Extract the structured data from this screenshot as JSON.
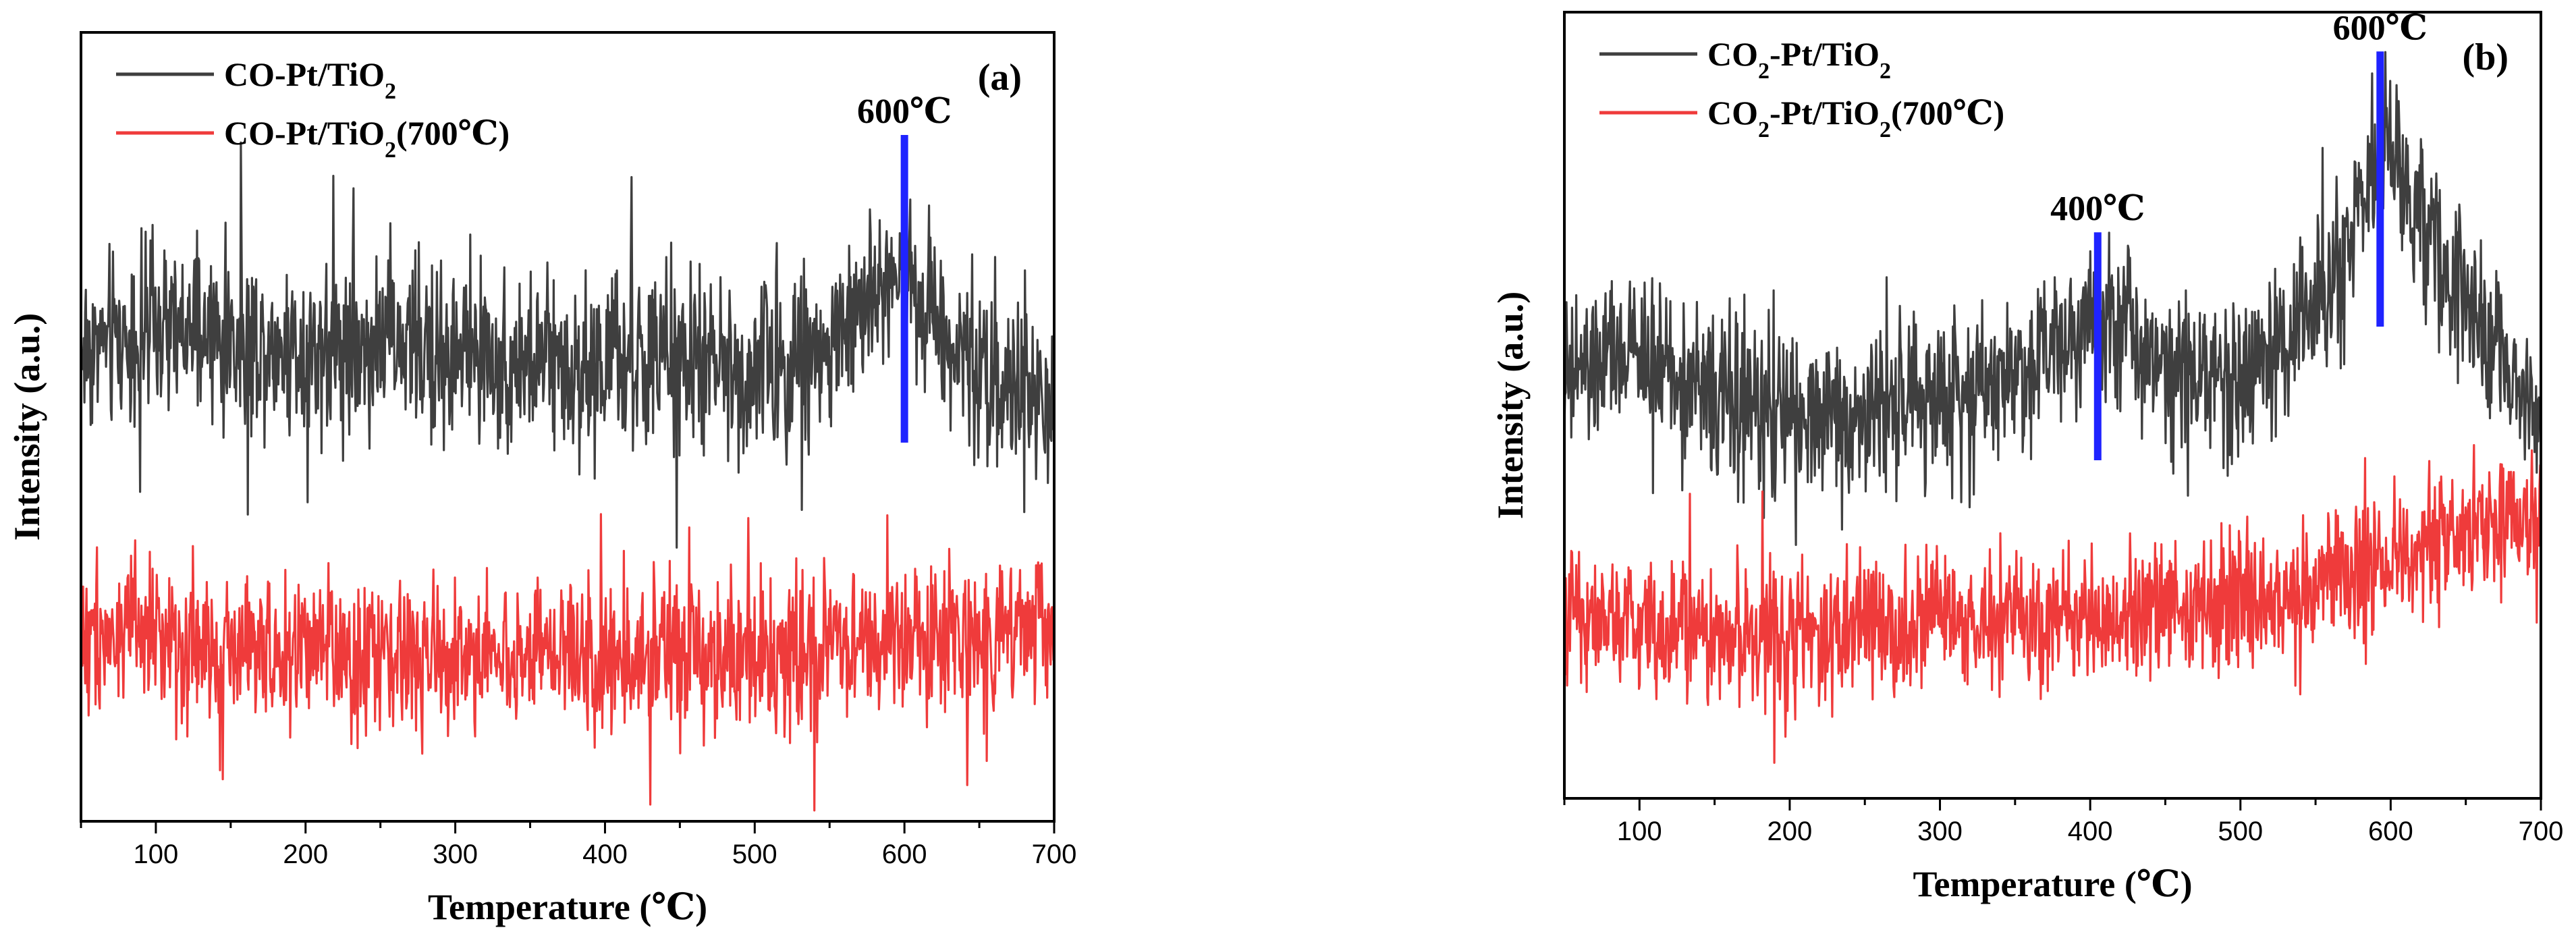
{
  "colors": {
    "gray_series": "#3f3f3f",
    "red_series": "#ef3b3b",
    "marker": "#1f23ff",
    "axis": "#000000"
  },
  "chart_data": [
    {
      "type": "line",
      "panel_label": "(a)",
      "xlabel": "Temperature (℃)",
      "ylabel": "Intensity (a.u.)",
      "xlim": [
        50,
        700
      ],
      "ylim": [
        0,
        100
      ],
      "xticks": [
        100,
        200,
        300,
        400,
        500,
        600,
        700
      ],
      "legend_position": "top-left",
      "series": [
        {
          "name": "CO-Pt/TiO2",
          "legend": {
            "base": "CO-Pt/TiO",
            "sub": "2",
            "suffix": ""
          },
          "color": "gray",
          "baseline": 59,
          "noise": 6.5,
          "peaks": [
            {
              "center": 600,
              "height": 14,
              "width": 22
            }
          ],
          "x": [
            50,
            100,
            150,
            200,
            250,
            300,
            350,
            400,
            450,
            500,
            550,
            580,
            600,
            620,
            650,
            700
          ],
          "y": [
            60,
            62,
            61,
            60,
            61,
            59,
            58,
            58,
            58,
            57,
            60,
            67,
            71,
            64,
            57,
            52
          ]
        },
        {
          "name": "CO-Pt/TiO2(700℃)",
          "legend": {
            "base": "CO-Pt/TiO",
            "sub": "2",
            "suffix": "(700℃)"
          },
          "color": "red",
          "baseline": 21,
          "noise": 5.5,
          "peaks": [],
          "x": [
            50,
            100,
            150,
            200,
            250,
            300,
            350,
            400,
            450,
            500,
            550,
            600,
            650,
            700
          ],
          "y": [
            24,
            23,
            22,
            21,
            21,
            21,
            21,
            21,
            21,
            21,
            22,
            22,
            23,
            25
          ]
        }
      ],
      "annotations": [
        {
          "text": "600℃",
          "x": 600,
          "line_y": [
            48,
            87
          ]
        }
      ]
    },
    {
      "type": "line",
      "panel_label": "(b)",
      "xlabel": "Temperature (℃)",
      "ylabel": "Intensity (a.u.)",
      "xlim": [
        50,
        700
      ],
      "ylim": [
        0,
        100
      ],
      "xticks": [
        100,
        200,
        300,
        400,
        500,
        600,
        700
      ],
      "legend_position": "top-left",
      "series": [
        {
          "name": "CO2-Pt/TiO2",
          "legend": {
            "base": "CO",
            "sub": "2",
            "mid": "-Pt/TiO",
            "sub2": "2",
            "suffix": ""
          },
          "color": "gray",
          "baseline": 50,
          "noise": 6.0,
          "peaks": [
            {
              "center": 400,
              "height": 13,
              "width": 55
            },
            {
              "center": 595,
              "height": 33,
              "width": 45
            }
          ],
          "x": [
            50,
            100,
            150,
            200,
            250,
            300,
            350,
            400,
            450,
            500,
            550,
            580,
            600,
            620,
            650,
            700
          ],
          "y": [
            53,
            57,
            51,
            48,
            49,
            51,
            54,
            62,
            56,
            53,
            62,
            77,
            82,
            74,
            62,
            48
          ]
        },
        {
          "name": "CO2-Pt/TiO2(700℃)",
          "legend": {
            "base": "CO",
            "sub": "2",
            "mid": "-Pt/TiO",
            "sub2": "2",
            "suffix": "(700℃)"
          },
          "color": "red",
          "baseline": 23,
          "noise": 5.0,
          "peaks": [],
          "x": [
            50,
            100,
            150,
            200,
            250,
            300,
            350,
            400,
            450,
            500,
            550,
            600,
            650,
            700
          ],
          "y": [
            24,
            22,
            21,
            21,
            22,
            22,
            23,
            23,
            24,
            25,
            27,
            30,
            33,
            36
          ]
        }
      ],
      "annotations": [
        {
          "text": "400℃",
          "x": 405,
          "line_y": [
            43,
            72
          ]
        },
        {
          "text": "600℃",
          "x": 593,
          "line_y": [
            60,
            95
          ]
        }
      ]
    }
  ]
}
